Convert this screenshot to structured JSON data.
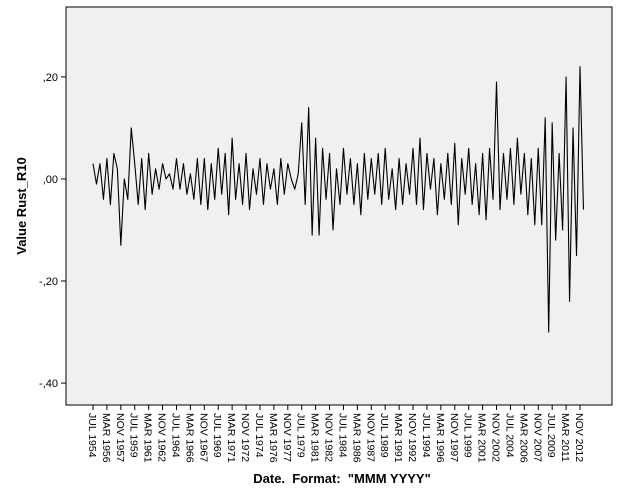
{
  "chart_data": {
    "type": "line",
    "x_label": "Date.  Format:  \"MMM YYYY\"",
    "y_label": "Value Rust_R10",
    "categories": [
      "JUL 1954",
      null,
      null,
      null,
      "MAR 1956",
      null,
      null,
      null,
      "NOV 1957",
      null,
      null,
      null,
      "JUL 1959",
      null,
      null,
      null,
      "MAR 1961",
      null,
      null,
      null,
      "NOV 1962",
      null,
      null,
      null,
      "JUL 1964",
      null,
      null,
      null,
      "MAR 1966",
      null,
      null,
      null,
      "NOV 1967",
      null,
      null,
      null,
      "JUL 1969",
      null,
      null,
      null,
      "MAR 1971",
      null,
      null,
      null,
      "NOV 1972",
      null,
      null,
      null,
      "JUL 1974",
      null,
      null,
      null,
      "MAR 1976",
      null,
      null,
      null,
      "NOV 1977",
      null,
      null,
      null,
      "JUL 1979",
      null,
      null,
      null,
      "MAR 1981",
      null,
      null,
      null,
      "NOV 1982",
      null,
      null,
      null,
      "JUL 1984",
      null,
      null,
      null,
      "MAR 1986",
      null,
      null,
      null,
      "NOV 1987",
      null,
      null,
      null,
      "JUL 1989",
      null,
      null,
      null,
      "MAR 1991",
      null,
      null,
      null,
      "NOV 1992",
      null,
      null,
      null,
      "JUL 1994",
      null,
      null,
      null,
      "MAR 1996",
      null,
      null,
      null,
      "NOV 1997",
      null,
      null,
      null,
      "JUL 1999",
      null,
      null,
      null,
      "MAR 2001",
      null,
      null,
      null,
      "NOV 2002",
      null,
      null,
      null,
      "JUL 2004",
      null,
      null,
      null,
      "MAR 2006",
      null,
      null,
      null,
      "NOV 2007",
      null,
      null,
      null,
      "JUL 2009",
      null,
      null,
      null,
      "MAR 2011",
      null,
      null,
      null,
      "NOV 2012",
      null
    ],
    "series": [
      {
        "name": "Rust_R10",
        "color": "#000000",
        "values": [
          0.03,
          -0.01,
          0.03,
          -0.04,
          0.04,
          -0.05,
          0.05,
          0.02,
          -0.13,
          0.0,
          -0.04,
          0.1,
          0.03,
          -0.05,
          0.04,
          -0.06,
          0.05,
          -0.03,
          0.02,
          -0.02,
          0.03,
          0.0,
          0.01,
          -0.02,
          0.04,
          -0.02,
          0.03,
          -0.03,
          0.01,
          -0.04,
          0.04,
          -0.05,
          0.04,
          -0.06,
          0.03,
          -0.04,
          0.06,
          -0.03,
          0.05,
          -0.07,
          0.08,
          -0.04,
          0.03,
          -0.05,
          0.05,
          -0.06,
          0.02,
          -0.03,
          0.04,
          -0.05,
          0.03,
          -0.02,
          0.02,
          -0.05,
          0.04,
          -0.03,
          0.03,
          0.0,
          -0.02,
          0.01,
          0.11,
          -0.05,
          0.14,
          -0.11,
          0.08,
          -0.11,
          0.06,
          -0.04,
          0.05,
          -0.1,
          0.02,
          -0.05,
          0.06,
          -0.03,
          0.04,
          -0.05,
          0.03,
          -0.07,
          0.05,
          -0.04,
          0.04,
          -0.03,
          0.05,
          -0.05,
          0.06,
          -0.04,
          0.02,
          -0.06,
          0.04,
          -0.05,
          0.03,
          -0.03,
          0.06,
          -0.05,
          0.08,
          -0.06,
          0.05,
          -0.02,
          0.04,
          -0.07,
          0.03,
          -0.04,
          0.05,
          -0.05,
          0.07,
          -0.09,
          0.04,
          -0.03,
          0.06,
          -0.05,
          0.03,
          -0.07,
          0.05,
          -0.08,
          0.06,
          -0.04,
          0.19,
          -0.06,
          0.05,
          -0.04,
          0.06,
          -0.05,
          0.08,
          -0.03,
          0.05,
          -0.07,
          0.04,
          -0.09,
          0.06,
          -0.09,
          0.12,
          -0.3,
          0.11,
          -0.12,
          0.05,
          -0.1,
          0.2,
          -0.24,
          0.1,
          -0.15,
          0.22,
          -0.06
        ]
      }
    ],
    "ylim": [
      -0.443,
      0.337
    ],
    "yticks": [
      {
        "value": -0.4,
        "label": "-,40"
      },
      {
        "value": -0.2,
        "label": "-,20"
      },
      {
        "value": 0,
        "label": ",00"
      },
      {
        "value": 0.2,
        "label": ",20"
      }
    ],
    "grid": false
  }
}
